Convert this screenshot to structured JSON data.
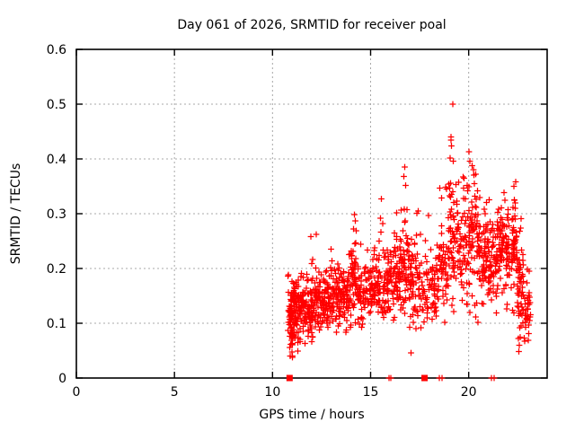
{
  "title": "Day 061 of 2026, SRMTID for receiver poal",
  "x_axis": {
    "label": "GPS time / hours",
    "tick_values": [
      0,
      5,
      10,
      15,
      20
    ],
    "tick_labels": [
      "0",
      "5",
      "10",
      "15",
      "20"
    ],
    "range": [
      0,
      24
    ]
  },
  "y_axis": {
    "label": "SRMTID / TECUs",
    "tick_values": [
      0,
      0.1,
      0.2,
      0.3,
      0.4,
      0.5,
      0.6
    ],
    "tick_labels": [
      "0",
      "0.1",
      "0.2",
      "0.3",
      "0.4",
      "0.5",
      "0.6"
    ],
    "range": [
      0,
      0.6
    ]
  },
  "colors": {
    "marker": "#ff0000",
    "grid": "#a8a8a8",
    "border": "#000000",
    "background": "#ffffff",
    "text": "#000000"
  },
  "chart_data": {
    "type": "scatter",
    "title": "Day 061 of 2026, SRMTID for receiver poal",
    "xlabel": "GPS time / hours",
    "ylabel": "SRMTID / TECUs",
    "xlim": [
      0,
      24
    ],
    "ylim": [
      0,
      0.6
    ],
    "grid": true,
    "legend": "none",
    "marker": "plus",
    "marker_color": "#ff0000",
    "data_x_start": 10.78,
    "data_x_end": 23.15,
    "seed": 7,
    "notable_points": [
      [
        19.18,
        0.5
      ],
      [
        19.1,
        0.44
      ],
      [
        19.12,
        0.424
      ],
      [
        19.05,
        0.402
      ],
      [
        19.22,
        0.396
      ],
      [
        20.02,
        0.413
      ],
      [
        20.06,
        0.396
      ],
      [
        20.35,
        0.372
      ],
      [
        20.3,
        0.355
      ],
      [
        16.74,
        0.385
      ],
      [
        16.7,
        0.368
      ],
      [
        16.79,
        0.352
      ],
      [
        15.55,
        0.327
      ],
      [
        14.18,
        0.298
      ],
      [
        14.23,
        0.287
      ],
      [
        14.12,
        0.272
      ],
      [
        12.24,
        0.262
      ],
      [
        11.96,
        0.258
      ],
      [
        17.42,
        0.305
      ],
      [
        18.88,
        0.345
      ],
      [
        19.95,
        0.342
      ],
      [
        22.4,
        0.358
      ],
      [
        22.3,
        0.35
      ],
      [
        21.05,
        0.325
      ],
      [
        22.55,
        0.048
      ],
      [
        22.58,
        0.06
      ],
      [
        22.62,
        0.075
      ],
      [
        22.6,
        0.092
      ],
      [
        11.02,
        0.038
      ],
      [
        17.05,
        0.046
      ]
    ],
    "zero_markers": {
      "squares": [
        10.87,
        17.75
      ],
      "pairs": [
        [
          15.93,
          16.04
        ],
        [
          18.5,
          18.63
        ],
        [
          21.15,
          21.3
        ]
      ]
    },
    "density_regions": [
      {
        "x0": 10.78,
        "x1": 11.05,
        "n": 70,
        "y_center": 0.105,
        "y_spread": 0.035,
        "y_min": 0.035,
        "y_max": 0.19
      },
      {
        "x0": 11.05,
        "x1": 11.35,
        "n": 65,
        "y_center": 0.12,
        "y_spread": 0.038,
        "y_min": 0.04,
        "y_max": 0.21
      },
      {
        "x0": 11.35,
        "x1": 11.75,
        "n": 55,
        "y_center": 0.125,
        "y_spread": 0.035,
        "y_min": 0.06,
        "y_max": 0.205
      },
      {
        "x0": 11.75,
        "x1": 12.15,
        "n": 60,
        "y_center": 0.13,
        "y_spread": 0.04,
        "y_min": 0.05,
        "y_max": 0.23
      },
      {
        "x0": 12.15,
        "x1": 12.45,
        "n": 48,
        "y_center": 0.145,
        "y_spread": 0.042,
        "y_min": 0.07,
        "y_max": 0.22
      },
      {
        "x0": 12.45,
        "x1": 12.95,
        "n": 65,
        "y_center": 0.145,
        "y_spread": 0.035,
        "y_min": 0.08,
        "y_max": 0.225
      },
      {
        "x0": 12.95,
        "x1": 13.45,
        "n": 65,
        "y_center": 0.15,
        "y_spread": 0.038,
        "y_min": 0.08,
        "y_max": 0.24
      },
      {
        "x0": 13.45,
        "x1": 13.95,
        "n": 60,
        "y_center": 0.155,
        "y_spread": 0.038,
        "y_min": 0.08,
        "y_max": 0.235
      },
      {
        "x0": 13.95,
        "x1": 14.35,
        "n": 55,
        "y_center": 0.175,
        "y_spread": 0.048,
        "y_min": 0.09,
        "y_max": 0.295
      },
      {
        "x0": 14.35,
        "x1": 14.85,
        "n": 55,
        "y_center": 0.155,
        "y_spread": 0.04,
        "y_min": 0.08,
        "y_max": 0.25
      },
      {
        "x0": 14.85,
        "x1": 15.35,
        "n": 50,
        "y_center": 0.165,
        "y_spread": 0.045,
        "y_min": 0.09,
        "y_max": 0.27
      },
      {
        "x0": 15.35,
        "x1": 15.75,
        "n": 48,
        "y_center": 0.175,
        "y_spread": 0.05,
        "y_min": 0.09,
        "y_max": 0.3
      },
      {
        "x0": 15.75,
        "x1": 16.25,
        "n": 58,
        "y_center": 0.18,
        "y_spread": 0.05,
        "y_min": 0.08,
        "y_max": 0.3
      },
      {
        "x0": 16.25,
        "x1": 16.65,
        "n": 55,
        "y_center": 0.19,
        "y_spread": 0.055,
        "y_min": 0.07,
        "y_max": 0.325
      },
      {
        "x0": 16.65,
        "x1": 16.95,
        "n": 45,
        "y_center": 0.215,
        "y_spread": 0.065,
        "y_min": 0.1,
        "y_max": 0.375
      },
      {
        "x0": 16.95,
        "x1": 17.45,
        "n": 55,
        "y_center": 0.185,
        "y_spread": 0.055,
        "y_min": 0.08,
        "y_max": 0.315
      },
      {
        "x0": 17.45,
        "x1": 17.95,
        "n": 42,
        "y_center": 0.16,
        "y_spread": 0.05,
        "y_min": 0.05,
        "y_max": 0.27
      },
      {
        "x0": 17.95,
        "x1": 18.45,
        "n": 45,
        "y_center": 0.165,
        "y_spread": 0.055,
        "y_min": 0.07,
        "y_max": 0.3
      },
      {
        "x0": 18.45,
        "x1": 18.95,
        "n": 52,
        "y_center": 0.2,
        "y_spread": 0.06,
        "y_min": 0.09,
        "y_max": 0.35
      },
      {
        "x0": 18.95,
        "x1": 19.45,
        "n": 65,
        "y_center": 0.26,
        "y_spread": 0.08,
        "y_min": 0.1,
        "y_max": 0.46
      },
      {
        "x0": 19.45,
        "x1": 19.95,
        "n": 55,
        "y_center": 0.235,
        "y_spread": 0.065,
        "y_min": 0.11,
        "y_max": 0.38
      },
      {
        "x0": 19.95,
        "x1": 20.45,
        "n": 62,
        "y_center": 0.245,
        "y_spread": 0.065,
        "y_min": 0.11,
        "y_max": 0.41
      },
      {
        "x0": 20.45,
        "x1": 20.95,
        "n": 62,
        "y_center": 0.225,
        "y_spread": 0.055,
        "y_min": 0.08,
        "y_max": 0.36
      },
      {
        "x0": 20.95,
        "x1": 21.45,
        "n": 64,
        "y_center": 0.215,
        "y_spread": 0.055,
        "y_min": 0.1,
        "y_max": 0.33
      },
      {
        "x0": 21.45,
        "x1": 21.95,
        "n": 68,
        "y_center": 0.245,
        "y_spread": 0.055,
        "y_min": 0.12,
        "y_max": 0.35
      },
      {
        "x0": 21.95,
        "x1": 22.45,
        "n": 68,
        "y_center": 0.245,
        "y_spread": 0.06,
        "y_min": 0.11,
        "y_max": 0.36
      },
      {
        "x0": 22.45,
        "x1": 22.85,
        "n": 55,
        "y_center": 0.165,
        "y_spread": 0.075,
        "y_min": 0.035,
        "y_max": 0.33
      },
      {
        "x0": 22.85,
        "x1": 23.15,
        "n": 32,
        "y_center": 0.125,
        "y_spread": 0.05,
        "y_min": 0.04,
        "y_max": 0.23
      }
    ]
  }
}
